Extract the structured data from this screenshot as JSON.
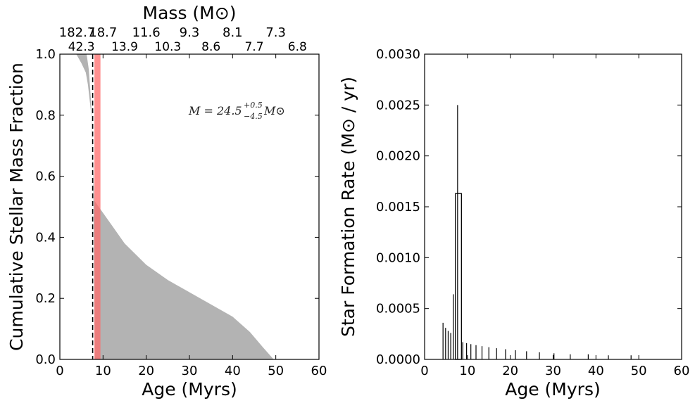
{
  "chart_data": [
    {
      "type": "area",
      "xlabel": "Age (Myrs)",
      "ylabel": "Cumulative Stellar Mass Fraction",
      "top_xlabel": "Mass (M⊙)",
      "xlim": [
        0,
        60
      ],
      "ylim": [
        0,
        1.0
      ],
      "x_ticks": [
        "0",
        "10",
        "20",
        "30",
        "40",
        "50",
        "60"
      ],
      "y_ticks": [
        "0.0",
        "0.2",
        "0.4",
        "0.6",
        "0.8",
        "1.0"
      ],
      "top_ticks_row1": [
        {
          "age": 4,
          "label": "182.7"
        },
        {
          "age": 10,
          "label": "18.7"
        },
        {
          "age": 20,
          "label": "11.6"
        },
        {
          "age": 30,
          "label": "9.3"
        },
        {
          "age": 40,
          "label": "8.1"
        },
        {
          "age": 50,
          "label": "7.3"
        }
      ],
      "top_ticks_row2": [
        {
          "age": 5,
          "label": "42.3"
        },
        {
          "age": 15,
          "label": "13.9"
        },
        {
          "age": 25,
          "label": "10.3"
        },
        {
          "age": 35,
          "label": "8.6"
        },
        {
          "age": 45,
          "label": "7.7"
        },
        {
          "age": 55,
          "label": "6.8"
        }
      ],
      "annotation": {
        "label": "M = 24.5",
        "sup": "+0.5",
        "sub": "−4.5",
        "unit": "M⊙"
      },
      "band": {
        "start": 8.0,
        "end": 9.4,
        "color": "#ff6b6b"
      },
      "median_line": 7.6,
      "envelope_upper": [
        [
          3.8,
          1.0
        ],
        [
          5.0,
          0.97
        ],
        [
          6.0,
          0.94
        ],
        [
          6.5,
          0.9
        ],
        [
          7.3,
          0.8
        ],
        [
          7.8,
          0.6
        ],
        [
          8.0,
          0.52
        ],
        [
          9.5,
          0.49
        ],
        [
          12,
          0.44
        ],
        [
          15,
          0.38
        ],
        [
          20,
          0.31
        ],
        [
          25,
          0.26
        ],
        [
          30,
          0.22
        ],
        [
          35,
          0.18
        ],
        [
          40,
          0.14
        ],
        [
          44,
          0.09
        ],
        [
          47,
          0.04
        ],
        [
          49.5,
          0.0
        ]
      ],
      "envelope_lower": [
        [
          6.2,
          1.0
        ],
        [
          6.7,
          0.95
        ],
        [
          7.2,
          0.85
        ],
        [
          7.6,
          0.7
        ],
        [
          7.8,
          0.5
        ],
        [
          7.9,
          0.3
        ],
        [
          8.0,
          0.1
        ],
        [
          8.1,
          0.0
        ]
      ],
      "envelope_color": "#b3b3b3"
    },
    {
      "type": "bar",
      "xlabel": "Age (Myrs)",
      "ylabel": "Star Formation Rate (M⊙ / yr)",
      "xlim": [
        0,
        60
      ],
      "ylim": [
        0,
        0.003
      ],
      "x_ticks": [
        "0",
        "10",
        "20",
        "30",
        "40",
        "50",
        "60"
      ],
      "y_ticks": [
        "0.0000",
        "0.0005",
        "0.0010",
        "0.0015",
        "0.0020",
        "0.0025",
        "0.0030"
      ],
      "bars": [
        {
          "x": 7.2,
          "width": 1.4,
          "value": 0.00163
        }
      ],
      "stems": [
        {
          "x": 4.3,
          "value": 0.00036
        },
        {
          "x": 4.9,
          "value": 0.00031
        },
        {
          "x": 5.5,
          "value": 0.00028
        },
        {
          "x": 6.1,
          "value": 0.00026
        },
        {
          "x": 6.7,
          "value": 0.00064
        },
        {
          "x": 7.7,
          "value": 0.0025
        },
        {
          "x": 8.9,
          "value": 0.00017
        },
        {
          "x": 9.8,
          "value": 0.00016
        },
        {
          "x": 10.8,
          "value": 0.00015
        },
        {
          "x": 12.0,
          "value": 0.00014
        },
        {
          "x": 13.4,
          "value": 0.00013
        },
        {
          "x": 15.0,
          "value": 0.00012
        },
        {
          "x": 16.8,
          "value": 0.00011
        },
        {
          "x": 18.9,
          "value": 0.0001
        },
        {
          "x": 21.2,
          "value": 9e-05
        },
        {
          "x": 23.8,
          "value": 8e-05
        },
        {
          "x": 26.8,
          "value": 7e-05
        },
        {
          "x": 30.2,
          "value": 6e-05
        },
        {
          "x": 34.0,
          "value": 5e-05
        },
        {
          "x": 38.2,
          "value": 5e-05
        },
        {
          "x": 42.9,
          "value": 4e-05
        },
        {
          "x": 48.2,
          "value": 4e-05
        }
      ]
    }
  ]
}
